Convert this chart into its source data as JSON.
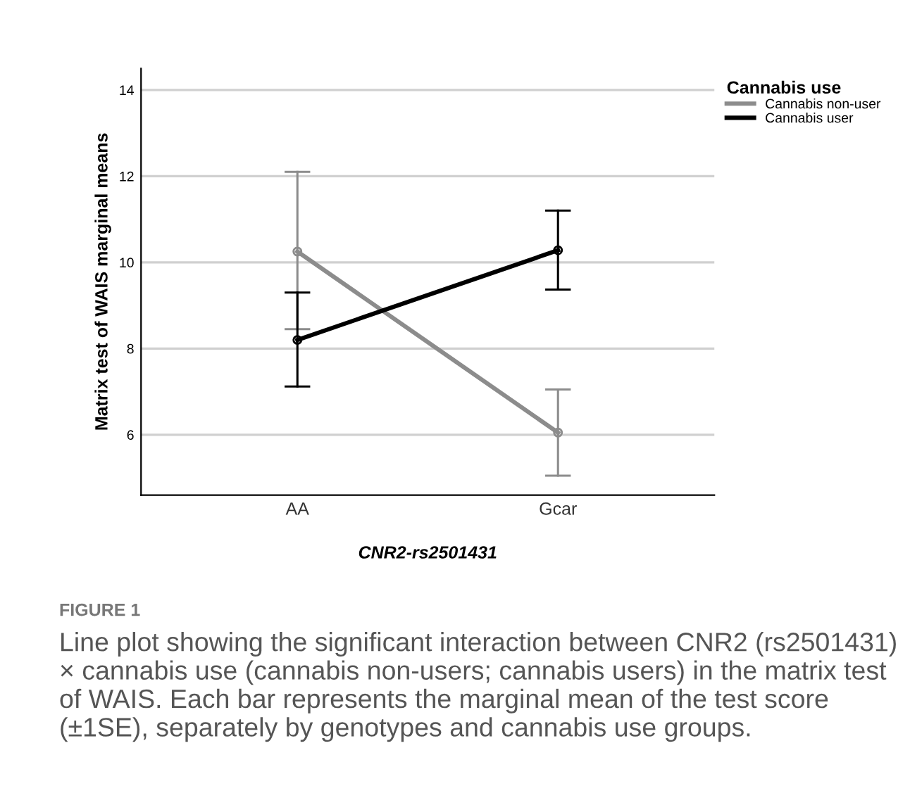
{
  "chart_data": {
    "type": "line",
    "xlabel": "CNR2-rs2501431",
    "ylabel": "Matrix test of WAIS marginal means",
    "legend_title": "Cannabis use",
    "categories": [
      "AA",
      "Gcar"
    ],
    "series": [
      {
        "name": "Cannabis non-user",
        "color": "#8c8c8c",
        "values": [
          10.25,
          6.05
        ],
        "errors": [
          [
            8.45,
            12.1
          ],
          [
            5.05,
            7.05
          ]
        ]
      },
      {
        "name": "Cannabis user",
        "color": "#000000",
        "values": [
          8.2,
          10.28
        ],
        "errors": [
          [
            7.12,
            9.3
          ],
          [
            9.37,
            11.2
          ]
        ]
      }
    ],
    "ylim": [
      4.6,
      14.5
    ],
    "yticks": [
      6,
      8,
      10,
      12,
      14
    ],
    "grid": "y",
    "legend": "top right",
    "marker": "circle",
    "line_style": "solid",
    "annotations": [
      "FIGURE 1",
      "Line plot showing the significant interaction between CNR2 (rs2501431) × cannabis use (cannabis non-users; cannabis users) in the matrix test of WAIS. Each bar represents the marginal mean of the test score (±1SE), separately by genotypes and cannabis use groups."
    ]
  }
}
